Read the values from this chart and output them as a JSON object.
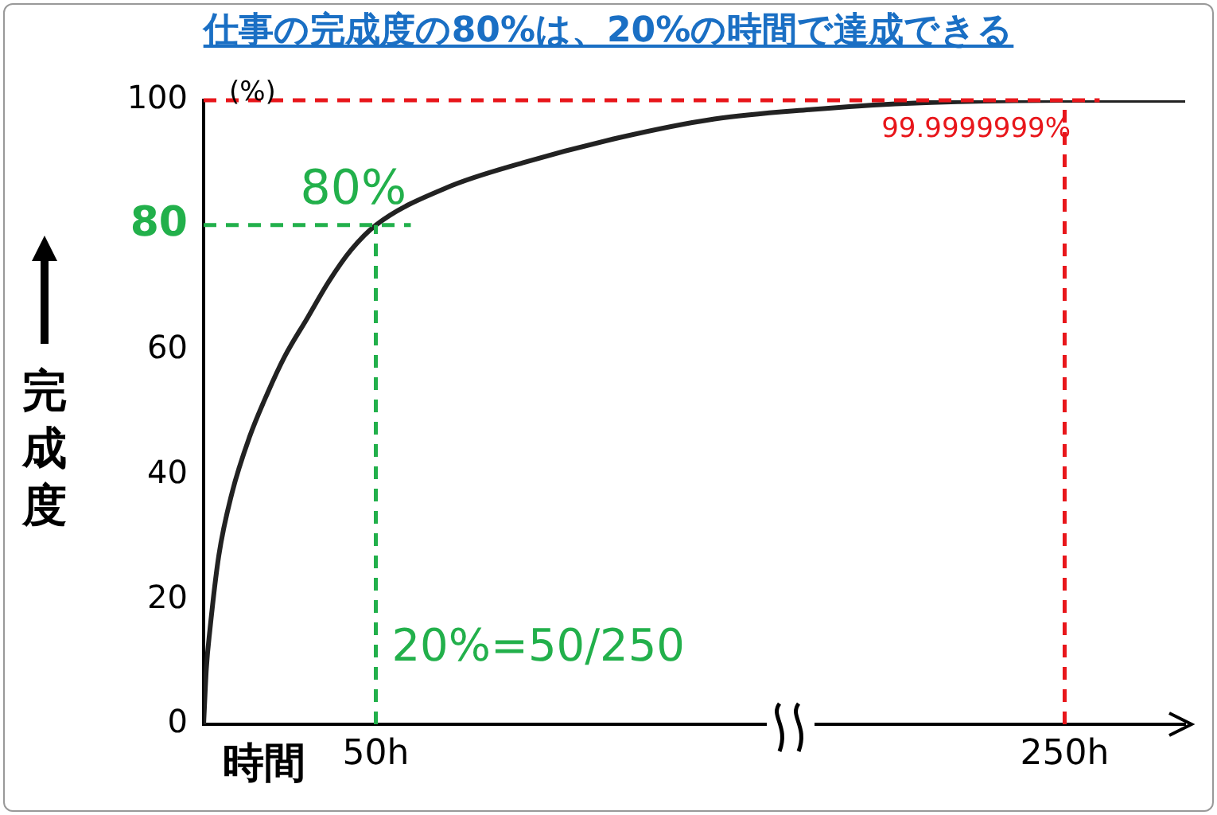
{
  "chart_data": {
    "type": "line",
    "title": "仕事の完成度の80%は、20%の時間で達成できる",
    "xlabel": "時間",
    "ylabel": "完成度",
    "x": [
      0,
      0.8,
      1.8,
      4.4,
      8.2,
      13.3,
      18.5,
      23.6,
      30,
      36.4,
      42.8,
      50,
      70.6,
      92.8,
      120.6,
      148.3,
      176,
      203.9,
      250,
      285
    ],
    "series": [
      {
        "color": "#222222",
        "values": [
          0,
          9,
          15,
          27,
          37,
          46,
          53,
          59,
          65,
          71,
          76,
          80,
          86,
          90,
          94,
          97,
          98.5,
          99.5,
          100,
          100
        ]
      }
    ],
    "xlim": [
      0,
      285
    ],
    "xticks": [
      {
        "value": 50,
        "label": "50h"
      },
      {
        "value": 250,
        "label": "250h"
      }
    ],
    "ylim": [
      0,
      100
    ],
    "yticks": [
      0,
      20,
      40,
      60,
      80,
      100
    ],
    "grid": false,
    "legend": false,
    "marker": "none",
    "line_style": "solid",
    "ref_lines": [
      {
        "axis": "x",
        "value": 50,
        "color": "#22b04b",
        "line_style": "dashed"
      },
      {
        "axis": "y",
        "value": 80,
        "label": "80%",
        "color": "#22b04b",
        "line_style": "dashed"
      },
      {
        "axis": "x",
        "value": 250,
        "color": "#e8161b",
        "line_style": "dashed"
      },
      {
        "axis": "y",
        "value": 99.9999999,
        "label": "99.9999999%",
        "color": "#e8161b",
        "line_style": "dashed"
      }
    ],
    "annotations": [
      "(%)",
      {
        "text": "20%=50/250",
        "x": 50,
        "y": 12
      }
    ]
  }
}
